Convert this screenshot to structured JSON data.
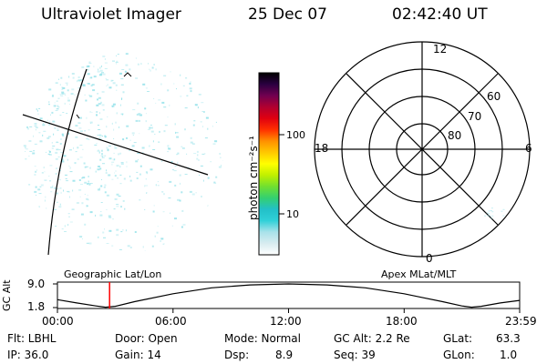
{
  "header": {
    "instrument": "Ultraviolet Imager",
    "date": "25 Dec 07",
    "time": "02:42:40 UT"
  },
  "image_panel": {
    "left_label": "Geographic Lat/Lon",
    "right_label": "Apex MLat/MLT",
    "speckle_color": "#8fe0e8"
  },
  "colorbar": {
    "unit_label": "photon cm⁻²s⁻¹",
    "ticks": [
      {
        "label": "100",
        "value": 100
      },
      {
        "label": "10",
        "value": 10
      }
    ],
    "colors": [
      "#ffffff",
      "#d8ecf0",
      "#a9e2ea",
      "#30d0d8",
      "#22c0c8",
      "#34d070",
      "#70e030",
      "#c0f000",
      "#ffff00",
      "#ffc800",
      "#ff9000",
      "#ff3000",
      "#e00010",
      "#b00030",
      "#700050",
      "#2a0040",
      "#000000"
    ]
  },
  "polar_plot": {
    "mlt_labels": {
      "top": "12",
      "right": "6",
      "bottom": "0",
      "left": "18"
    },
    "lat_rings": [
      {
        "label": "60",
        "value": 60
      },
      {
        "label": "70",
        "value": 70
      },
      {
        "label": "80",
        "value": 80
      }
    ]
  },
  "chart_data": {
    "type": "line",
    "ylabel": "GC Alt",
    "yticks": [
      "9.0",
      "1.8"
    ],
    "ylim": [
      1.8,
      9.0
    ],
    "xticks": [
      "00:00",
      "06:00",
      "12:00",
      "18:00",
      "23:59"
    ],
    "x_hours": [
      0,
      1.0,
      2.0,
      2.5,
      3.0,
      4.0,
      6.0,
      8.0,
      10.0,
      12.0,
      14.0,
      16.0,
      18.0,
      19.0,
      20.0,
      21.0,
      21.5,
      22.0,
      23.0,
      24.0
    ],
    "altitude": [
      4.2,
      3.2,
      2.3,
      1.9,
      2.2,
      3.6,
      6.0,
      7.8,
      8.7,
      9.0,
      8.7,
      7.8,
      6.0,
      4.8,
      3.6,
      2.3,
      1.9,
      2.2,
      3.2,
      4.0
    ],
    "current_time_hours": 2.71,
    "marker_color": "#ff0000"
  },
  "footer": {
    "flt": "Flt: LBHL",
    "ip": "IP: 36.0",
    "door": "Door: Open",
    "gain": "Gain: 14",
    "mode": "Mode: Normal",
    "dsp_label": "Dsp:",
    "dsp_value": "8.9",
    "gc_alt": "GC Alt: 2.2 Re",
    "seq": "Seq: 39",
    "glat_label": "GLat:",
    "glat_value": "63.3",
    "glon_label": "GLon:",
    "glon_value": "1.0"
  }
}
